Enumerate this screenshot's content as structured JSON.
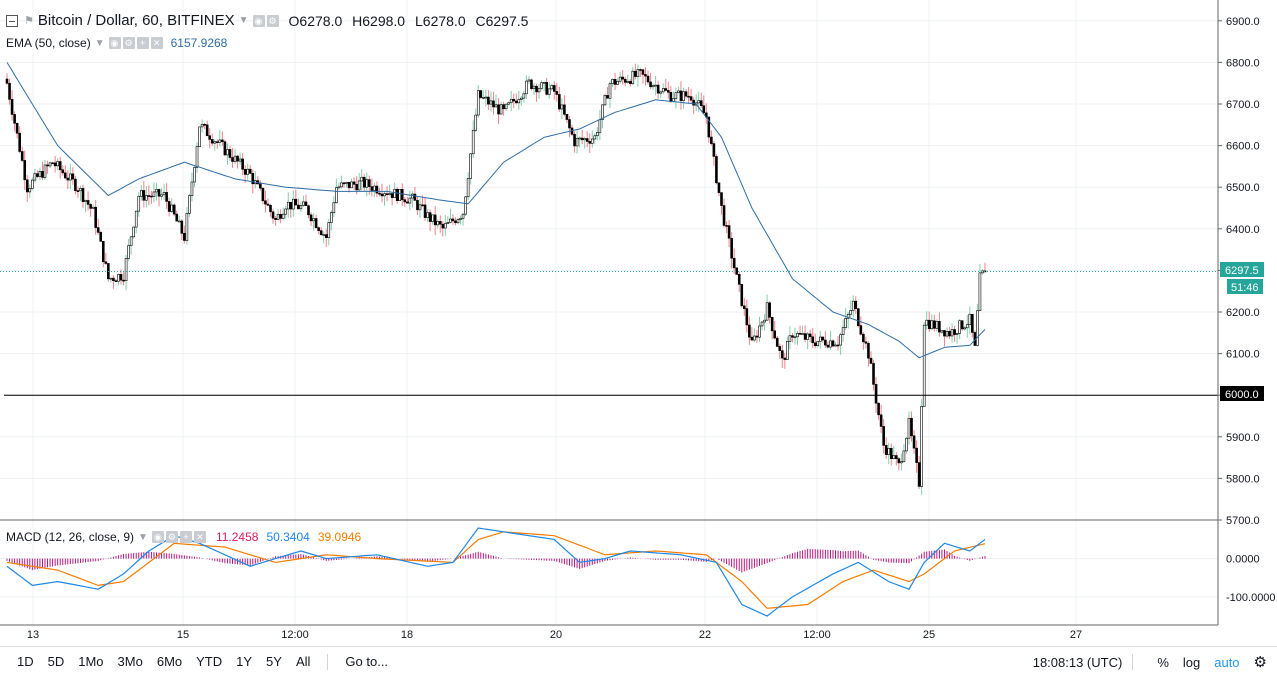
{
  "header": {
    "symbol": "Bitcoin / Dollar, 60, BITFINEX",
    "ohlc": [
      {
        "key": "O",
        "value": "6278.0"
      },
      {
        "key": "H",
        "value": "6298.0"
      },
      {
        "key": "L",
        "value": "6278.0"
      },
      {
        "key": "C",
        "value": "6297.5"
      }
    ]
  },
  "ema": {
    "label": "EMA (50, close)",
    "value": "6157.9268"
  },
  "macd": {
    "label": "MACD (12, 26, close, 9)",
    "hist": "11.2458",
    "macd": "50.3404",
    "signal": "39.0946"
  },
  "price_axis": {
    "ticks": [
      "6900.0",
      "6800.0",
      "6700.0",
      "6600.0",
      "6500.0",
      "6400.0",
      "6300.0",
      "6200.0",
      "6100.0",
      "6000.0",
      "5900.0",
      "5800.0",
      "5700.0"
    ],
    "last_price": "6297.5",
    "countdown": "51:46",
    "horizontal_line": "6000.0"
  },
  "macd_axis": {
    "ticks": [
      "0.0000",
      "-100.0000"
    ]
  },
  "time_axis": {
    "ticks": [
      "13",
      "15",
      "12:00",
      "18",
      "20",
      "22",
      "12:00",
      "25",
      "27"
    ]
  },
  "bottom_bar": {
    "ranges": [
      "1D",
      "5D",
      "1Mo",
      "3Mo",
      "6Mo",
      "YTD",
      "1Y",
      "5Y",
      "All"
    ],
    "goto": "Go to...",
    "clock": "18:08:13 (UTC)",
    "percent": "%",
    "log": "log",
    "auto": "auto"
  },
  "colors": {
    "up": "#53b987",
    "down": "#eb4d5c",
    "ema": "#2e6da4",
    "macd": "#1e88e5",
    "signal": "#f57c00",
    "hist": "#b5167d",
    "last": "#26a69a"
  },
  "icons": [
    "collapse-icon",
    "flag-icon",
    "eye-icon",
    "gear-icon",
    "plus-icon",
    "close-icon",
    "settings-gear-icon"
  ],
  "chart_data": {
    "type": "candlestick",
    "ylim": [
      5700,
      6950
    ],
    "close_anchors": [
      [
        0,
        6750
      ],
      [
        8,
        6500
      ],
      [
        18,
        6560
      ],
      [
        28,
        6500
      ],
      [
        34,
        6440
      ],
      [
        40,
        6280
      ],
      [
        46,
        6290
      ],
      [
        52,
        6480
      ],
      [
        62,
        6480
      ],
      [
        70,
        6380
      ],
      [
        76,
        6650
      ],
      [
        86,
        6590
      ],
      [
        96,
        6530
      ],
      [
        106,
        6420
      ],
      [
        110,
        6460
      ],
      [
        118,
        6450
      ],
      [
        126,
        6380
      ],
      [
        130,
        6500
      ],
      [
        140,
        6510
      ],
      [
        150,
        6490
      ],
      [
        160,
        6470
      ],
      [
        166,
        6430
      ],
      [
        172,
        6400
      ],
      [
        180,
        6440
      ],
      [
        186,
        6720
      ],
      [
        196,
        6680
      ],
      [
        206,
        6750
      ],
      [
        216,
        6730
      ],
      [
        224,
        6610
      ],
      [
        232,
        6620
      ],
      [
        238,
        6750
      ],
      [
        250,
        6770
      ],
      [
        262,
        6720
      ],
      [
        270,
        6720
      ],
      [
        276,
        6670
      ],
      [
        282,
        6450
      ],
      [
        288,
        6280
      ],
      [
        294,
        6120
      ],
      [
        300,
        6210
      ],
      [
        306,
        6080
      ],
      [
        310,
        6150
      ],
      [
        318,
        6130
      ],
      [
        328,
        6130
      ],
      [
        334,
        6220
      ],
      [
        340,
        6100
      ],
      [
        346,
        5880
      ],
      [
        352,
        5830
      ],
      [
        356,
        5930
      ],
      [
        360,
        5790
      ],
      [
        362,
        6180
      ],
      [
        372,
        6150
      ],
      [
        380,
        6180
      ],
      [
        382,
        6110
      ],
      [
        384,
        6280
      ],
      [
        386,
        6297.5
      ]
    ],
    "ema_anchors": [
      [
        0,
        6800
      ],
      [
        20,
        6600
      ],
      [
        40,
        6480
      ],
      [
        52,
        6520
      ],
      [
        70,
        6560
      ],
      [
        90,
        6520
      ],
      [
        110,
        6500
      ],
      [
        130,
        6490
      ],
      [
        150,
        6490
      ],
      [
        170,
        6470
      ],
      [
        182,
        6460
      ],
      [
        196,
        6560
      ],
      [
        212,
        6620
      ],
      [
        226,
        6640
      ],
      [
        240,
        6680
      ],
      [
        256,
        6710
      ],
      [
        272,
        6700
      ],
      [
        282,
        6620
      ],
      [
        294,
        6450
      ],
      [
        310,
        6280
      ],
      [
        326,
        6200
      ],
      [
        340,
        6170
      ],
      [
        352,
        6130
      ],
      [
        360,
        6090
      ],
      [
        370,
        6115
      ],
      [
        380,
        6120
      ],
      [
        386,
        6158
      ]
    ],
    "macd_anchors": [
      [
        0,
        -20
      ],
      [
        10,
        -70
      ],
      [
        20,
        -60
      ],
      [
        36,
        -80
      ],
      [
        46,
        -40
      ],
      [
        56,
        20
      ],
      [
        66,
        60
      ],
      [
        76,
        40
      ],
      [
        96,
        -20
      ],
      [
        116,
        20
      ],
      [
        126,
        0
      ],
      [
        146,
        10
      ],
      [
        166,
        -20
      ],
      [
        176,
        -10
      ],
      [
        186,
        80
      ],
      [
        196,
        70
      ],
      [
        216,
        50
      ],
      [
        226,
        -10
      ],
      [
        236,
        0
      ],
      [
        246,
        20
      ],
      [
        266,
        10
      ],
      [
        280,
        -10
      ],
      [
        290,
        -120
      ],
      [
        300,
        -150
      ],
      [
        310,
        -100
      ],
      [
        326,
        -40
      ],
      [
        336,
        -10
      ],
      [
        348,
        -60
      ],
      [
        356,
        -80
      ],
      [
        362,
        -10
      ],
      [
        370,
        40
      ],
      [
        380,
        20
      ],
      [
        386,
        50
      ]
    ],
    "signal_anchors": [
      [
        0,
        -10
      ],
      [
        20,
        -30
      ],
      [
        36,
        -70
      ],
      [
        46,
        -60
      ],
      [
        56,
        -10
      ],
      [
        66,
        40
      ],
      [
        86,
        30
      ],
      [
        106,
        -10
      ],
      [
        126,
        10
      ],
      [
        146,
        0
      ],
      [
        176,
        -10
      ],
      [
        186,
        50
      ],
      [
        196,
        70
      ],
      [
        216,
        60
      ],
      [
        236,
        10
      ],
      [
        256,
        20
      ],
      [
        276,
        10
      ],
      [
        290,
        -60
      ],
      [
        300,
        -130
      ],
      [
        316,
        -120
      ],
      [
        330,
        -60
      ],
      [
        342,
        -30
      ],
      [
        356,
        -60
      ],
      [
        362,
        -40
      ],
      [
        374,
        20
      ],
      [
        386,
        39
      ]
    ],
    "macd_ylim": [
      -150,
      80
    ]
  }
}
